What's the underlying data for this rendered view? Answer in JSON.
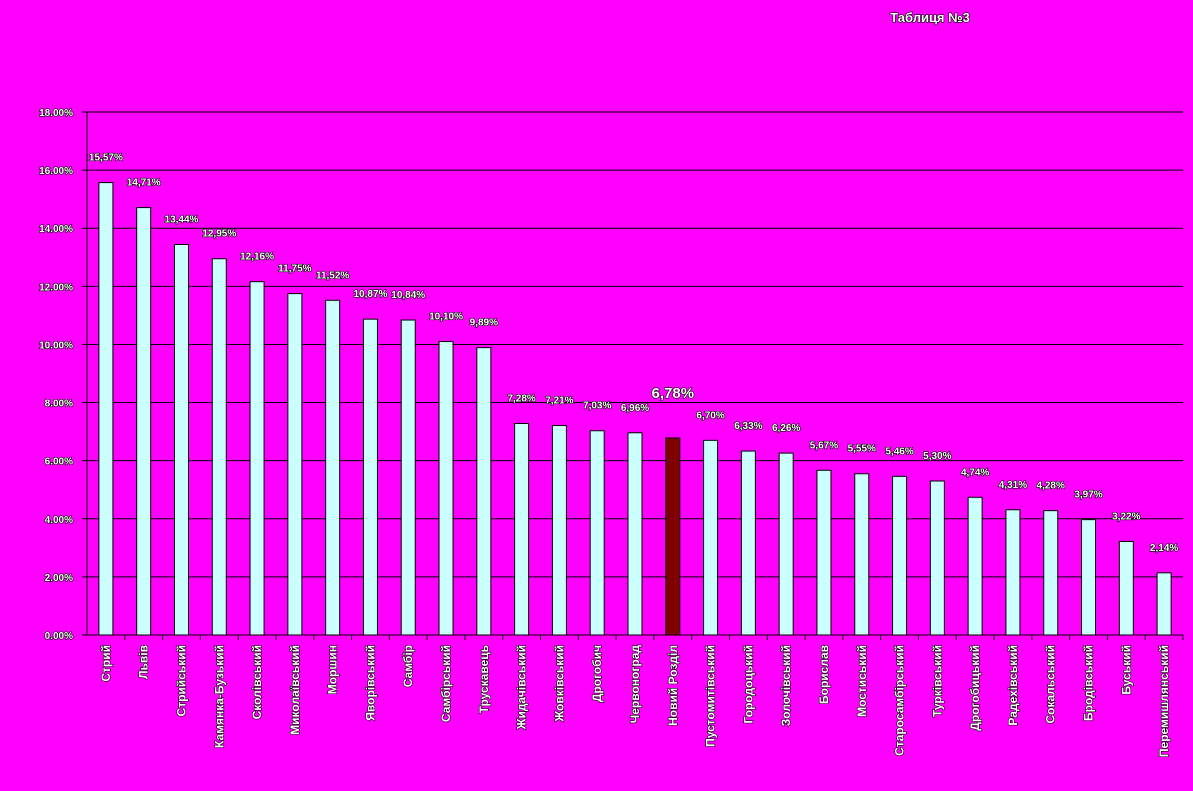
{
  "chart_data": {
    "type": "bar",
    "title": "Таблиця №3",
    "categories": [
      "Стрий",
      "Львів",
      "Стрийський",
      "Камянка-Бузький",
      "Сколівський",
      "Миколаївський",
      "Моршин",
      "Яворівський",
      "Самбір",
      "Самбірський",
      "Трускавець",
      "Жидачівський",
      "Жовківський",
      "Дрогобич",
      "Червоноград",
      "Новий Розділ",
      "Пустомитівський",
      "Городоцький",
      "Золочівський",
      "Борислав",
      "Мостиський",
      "Старосамбірський",
      "Турківський",
      "Дрогобицький",
      "Радехівський",
      "Сокальський",
      "Бродівський",
      "Буський",
      "Перемишлянський"
    ],
    "values": [
      15.57,
      14.71,
      13.44,
      12.95,
      12.16,
      11.75,
      11.52,
      10.87,
      10.84,
      10.1,
      9.89,
      7.28,
      7.21,
      7.03,
      6.96,
      6.78,
      6.7,
      6.33,
      6.26,
      5.67,
      5.55,
      5.46,
      5.3,
      4.74,
      4.31,
      4.28,
      3.97,
      3.22,
      2.14
    ],
    "value_labels": [
      "15,57%",
      "14,71%",
      "13,44%",
      "12,95%",
      "12,16%",
      "11,75%",
      "11,52%",
      "10,87%",
      "10,84%",
      "10,10%",
      "9,89%",
      "7,28%",
      "7,21%",
      "7,03%",
      "6,96%",
      "6,78%",
      "6,70%",
      "6,33%",
      "6,26%",
      "5,67%",
      "5,55%",
      "5,46%",
      "5,30%",
      "4,74%",
      "4,31%",
      "4,28%",
      "3,97%",
      "3,22%",
      "2,14%"
    ],
    "color": "#ccffff",
    "colors": [
      "#ccffff",
      "#ccffff",
      "#ccffff",
      "#ccffff",
      "#ccffff",
      "#ccffff",
      "#ccffff",
      "#ccffff",
      "#ccffff",
      "#ccffff",
      "#ccffff",
      "#ccffff",
      "#ccffff",
      "#ccffff",
      "#ccffff",
      "#800000",
      "#ccffff",
      "#ccffff",
      "#ccffff",
      "#ccffff",
      "#ccffff",
      "#ccffff",
      "#ccffff",
      "#ccffff",
      "#ccffff",
      "#ccffff",
      "#ccffff",
      "#ccffff",
      "#ccffff"
    ],
    "ylim": [
      0,
      18
    ],
    "yticks": [
      {
        "value": 0,
        "label": "0.00%"
      },
      {
        "value": 2,
        "label": "2.00%"
      },
      {
        "value": 4,
        "label": "4.00%"
      },
      {
        "value": 6,
        "label": "6.00%"
      },
      {
        "value": 8,
        "label": "8.00%"
      },
      {
        "value": 10,
        "label": "10.00%"
      },
      {
        "value": 12,
        "label": "12.00%"
      },
      {
        "value": 14,
        "label": "14.00%"
      },
      {
        "value": 16,
        "label": "16.00%"
      },
      {
        "value": 18,
        "label": "18.00%"
      }
    ],
    "grid": true
  }
}
